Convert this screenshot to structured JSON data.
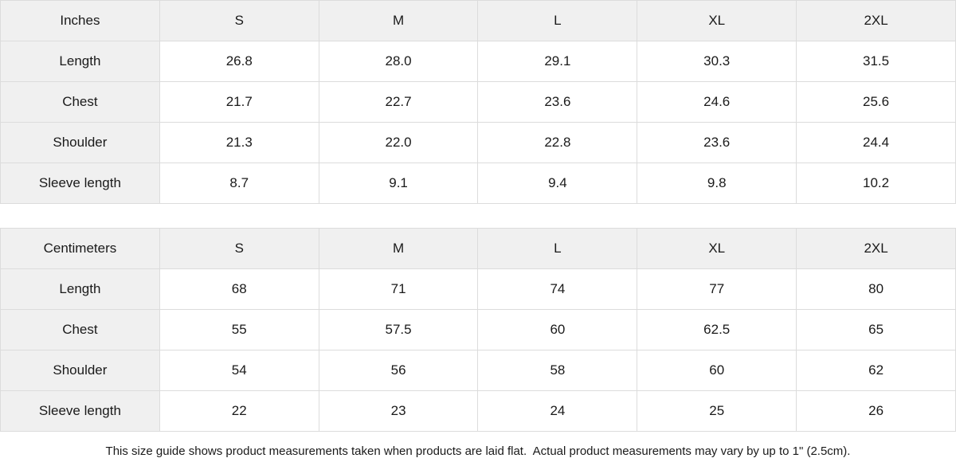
{
  "tables": [
    {
      "unit_label": "Inches",
      "sizes": [
        "S",
        "M",
        "L",
        "XL",
        "2XL"
      ],
      "rows": [
        {
          "label": "Length",
          "values": [
            "26.8",
            "28.0",
            "29.1",
            "30.3",
            "31.5"
          ]
        },
        {
          "label": "Chest",
          "values": [
            "21.7",
            "22.7",
            "23.6",
            "24.6",
            "25.6"
          ]
        },
        {
          "label": "Shoulder",
          "values": [
            "21.3",
            "22.0",
            "22.8",
            "23.6",
            "24.4"
          ]
        },
        {
          "label": "Sleeve length",
          "values": [
            "8.7",
            "9.1",
            "9.4",
            "9.8",
            "10.2"
          ]
        }
      ]
    },
    {
      "unit_label": "Centimeters",
      "sizes": [
        "S",
        "M",
        "L",
        "XL",
        "2XL"
      ],
      "rows": [
        {
          "label": "Length",
          "values": [
            "68",
            "71",
            "74",
            "77",
            "80"
          ]
        },
        {
          "label": "Chest",
          "values": [
            "55",
            "57.5",
            "60",
            "62.5",
            "65"
          ]
        },
        {
          "label": "Shoulder",
          "values": [
            "54",
            "56",
            "58",
            "60",
            "62"
          ]
        },
        {
          "label": "Sleeve length",
          "values": [
            "22",
            "23",
            "24",
            "25",
            "26"
          ]
        }
      ]
    }
  ],
  "footer": {
    "note": "This size guide shows product measurements taken when products are laid flat.  Actual product measurements may vary by up to 1\" (2.5cm)."
  },
  "colors": {
    "header_bg": "#f0f0f0",
    "border": "#dcdcdc",
    "text": "#1a1a1a",
    "cell_bg": "#ffffff"
  },
  "chart_data": [
    {
      "type": "table",
      "title": "Inches",
      "columns": [
        "Inches",
        "S",
        "M",
        "L",
        "XL",
        "2XL"
      ],
      "rows": [
        [
          "Length",
          26.8,
          28.0,
          29.1,
          30.3,
          31.5
        ],
        [
          "Chest",
          21.7,
          22.7,
          23.6,
          24.6,
          25.6
        ],
        [
          "Shoulder",
          21.3,
          22.0,
          22.8,
          23.6,
          24.4
        ],
        [
          "Sleeve length",
          8.7,
          9.1,
          9.4,
          9.8,
          10.2
        ]
      ]
    },
    {
      "type": "table",
      "title": "Centimeters",
      "columns": [
        "Centimeters",
        "S",
        "M",
        "L",
        "XL",
        "2XL"
      ],
      "rows": [
        [
          "Length",
          68,
          71,
          74,
          77,
          80
        ],
        [
          "Chest",
          55,
          57.5,
          60,
          62.5,
          65
        ],
        [
          "Shoulder",
          54,
          56,
          58,
          60,
          62
        ],
        [
          "Sleeve length",
          22,
          23,
          24,
          25,
          26
        ]
      ]
    }
  ]
}
